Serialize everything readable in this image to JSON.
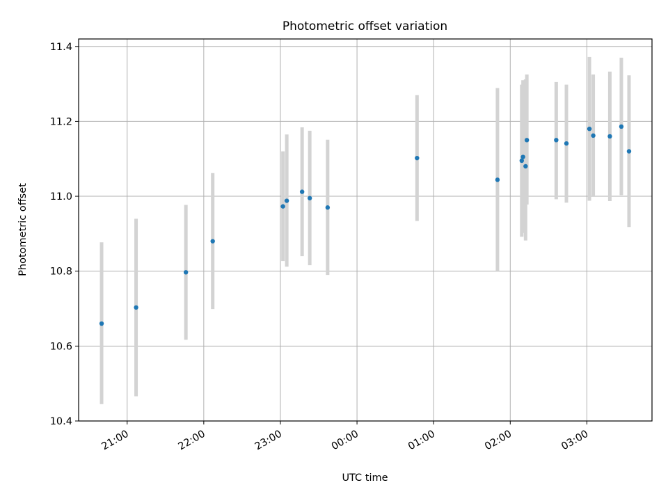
{
  "chart_data": {
    "type": "scatter",
    "title": "Photometric offset variation",
    "xlabel": "UTC time",
    "ylabel": "Photometric offset",
    "x_axis": {
      "kind": "time",
      "range": [
        "20:22",
        "03:51"
      ],
      "ticks": [
        "21:00",
        "22:00",
        "23:00",
        "00:00",
        "01:00",
        "02:00",
        "03:00"
      ]
    },
    "y_axis": {
      "range": [
        10.4,
        11.42
      ],
      "ticks": [
        "10.4",
        "10.6",
        "10.8",
        "11.0",
        "11.2",
        "11.4"
      ]
    },
    "grid": true,
    "colors": {
      "points": "#1f77b4",
      "errorbars": "#d3d3d3",
      "grid": "#b0b0b0"
    },
    "points": [
      {
        "time": "20:40",
        "y": 10.66,
        "err_low": 10.445,
        "err_high": 10.877
      },
      {
        "time": "21:07",
        "y": 10.703,
        "err_low": 10.466,
        "err_high": 10.94
      },
      {
        "time": "21:46",
        "y": 10.797,
        "err_low": 10.617,
        "err_high": 10.977
      },
      {
        "time": "22:07",
        "y": 10.88,
        "err_low": 10.699,
        "err_high": 11.062
      },
      {
        "time": "23:02",
        "y": 10.973,
        "err_low": 10.827,
        "err_high": 11.12
      },
      {
        "time": "23:05",
        "y": 10.988,
        "err_low": 10.812,
        "err_high": 11.165
      },
      {
        "time": "23:17",
        "y": 11.012,
        "err_low": 10.84,
        "err_high": 11.184
      },
      {
        "time": "23:23",
        "y": 10.995,
        "err_low": 10.816,
        "err_high": 11.175
      },
      {
        "time": "23:37",
        "y": 10.97,
        "err_low": 10.79,
        "err_high": 11.151
      },
      {
        "time": "00:47",
        "y": 11.102,
        "err_low": 10.934,
        "err_high": 11.27
      },
      {
        "time": "01:50",
        "y": 11.044,
        "err_low": 10.8,
        "err_high": 11.289
      },
      {
        "time": "02:09",
        "y": 11.095,
        "err_low": 10.892,
        "err_high": 11.298
      },
      {
        "time": "02:10",
        "y": 11.105,
        "err_low": 10.902,
        "err_high": 11.31
      },
      {
        "time": "02:12",
        "y": 11.08,
        "err_low": 10.882,
        "err_high": 11.312
      },
      {
        "time": "02:13",
        "y": 11.15,
        "err_low": 10.978,
        "err_high": 11.325
      },
      {
        "time": "02:36",
        "y": 11.15,
        "err_low": 10.992,
        "err_high": 11.305
      },
      {
        "time": "02:44",
        "y": 11.141,
        "err_low": 10.983,
        "err_high": 11.298
      },
      {
        "time": "03:02",
        "y": 11.18,
        "err_low": 10.988,
        "err_high": 11.372
      },
      {
        "time": "03:05",
        "y": 11.162,
        "err_low": 11.0,
        "err_high": 11.325
      },
      {
        "time": "03:18",
        "y": 11.16,
        "err_low": 10.987,
        "err_high": 11.333
      },
      {
        "time": "03:27",
        "y": 11.186,
        "err_low": 11.003,
        "err_high": 11.37
      },
      {
        "time": "03:33",
        "y": 11.12,
        "err_low": 10.918,
        "err_high": 11.323
      }
    ]
  }
}
